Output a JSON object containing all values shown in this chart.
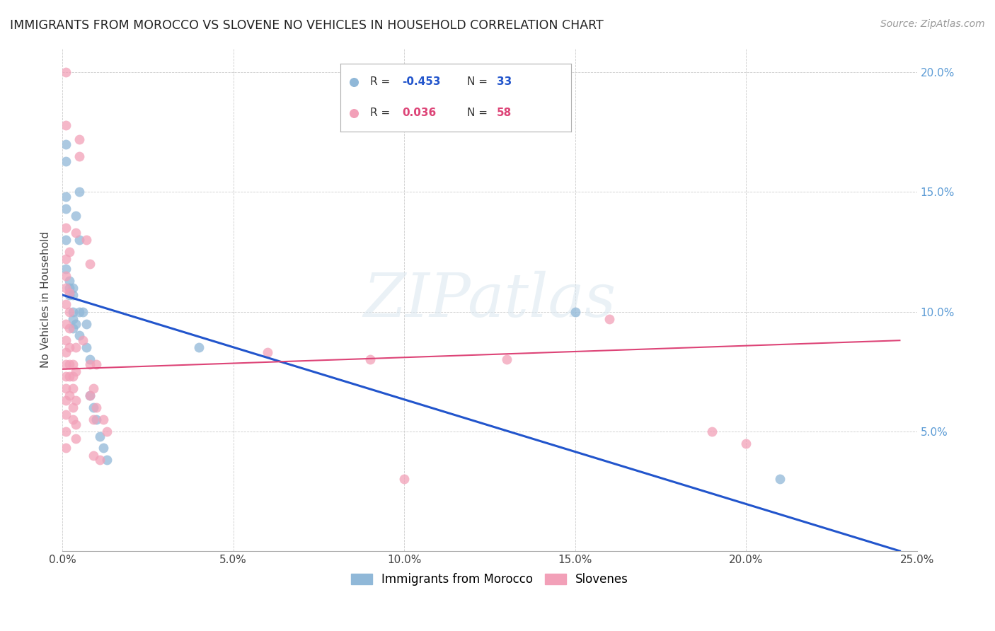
{
  "title": "IMMIGRANTS FROM MOROCCO VS SLOVENE NO VEHICLES IN HOUSEHOLD CORRELATION CHART",
  "source": "Source: ZipAtlas.com",
  "ylabel": "No Vehicles in Household",
  "xlim": [
    0.0,
    0.25
  ],
  "ylim": [
    0.0,
    0.21
  ],
  "xticks": [
    0.0,
    0.05,
    0.1,
    0.15,
    0.2,
    0.25
  ],
  "xtick_labels": [
    "0.0%",
    "5.0%",
    "10.0%",
    "15.0%",
    "20.0%",
    "25.0%"
  ],
  "yticks": [
    0.0,
    0.05,
    0.1,
    0.15,
    0.2
  ],
  "ytick_labels": [
    "",
    "5.0%",
    "10.0%",
    "15.0%",
    "20.0%"
  ],
  "blue_scatter": [
    [
      0.001,
      0.17
    ],
    [
      0.001,
      0.163
    ],
    [
      0.001,
      0.148
    ],
    [
      0.001,
      0.143
    ],
    [
      0.001,
      0.13
    ],
    [
      0.001,
      0.118
    ],
    [
      0.002,
      0.113
    ],
    [
      0.002,
      0.11
    ],
    [
      0.002,
      0.107
    ],
    [
      0.003,
      0.11
    ],
    [
      0.003,
      0.107
    ],
    [
      0.003,
      0.1
    ],
    [
      0.003,
      0.097
    ],
    [
      0.003,
      0.093
    ],
    [
      0.004,
      0.14
    ],
    [
      0.004,
      0.095
    ],
    [
      0.005,
      0.15
    ],
    [
      0.005,
      0.13
    ],
    [
      0.005,
      0.1
    ],
    [
      0.005,
      0.09
    ],
    [
      0.006,
      0.1
    ],
    [
      0.007,
      0.095
    ],
    [
      0.007,
      0.085
    ],
    [
      0.008,
      0.08
    ],
    [
      0.008,
      0.065
    ],
    [
      0.009,
      0.06
    ],
    [
      0.01,
      0.055
    ],
    [
      0.011,
      0.048
    ],
    [
      0.012,
      0.043
    ],
    [
      0.013,
      0.038
    ],
    [
      0.15,
      0.1
    ],
    [
      0.21,
      0.03
    ],
    [
      0.04,
      0.085
    ]
  ],
  "pink_scatter": [
    [
      0.001,
      0.2
    ],
    [
      0.001,
      0.178
    ],
    [
      0.001,
      0.135
    ],
    [
      0.001,
      0.122
    ],
    [
      0.001,
      0.115
    ],
    [
      0.001,
      0.11
    ],
    [
      0.001,
      0.103
    ],
    [
      0.001,
      0.095
    ],
    [
      0.001,
      0.088
    ],
    [
      0.001,
      0.083
    ],
    [
      0.001,
      0.078
    ],
    [
      0.001,
      0.073
    ],
    [
      0.001,
      0.068
    ],
    [
      0.001,
      0.063
    ],
    [
      0.001,
      0.057
    ],
    [
      0.001,
      0.05
    ],
    [
      0.001,
      0.043
    ],
    [
      0.002,
      0.125
    ],
    [
      0.002,
      0.108
    ],
    [
      0.002,
      0.1
    ],
    [
      0.002,
      0.093
    ],
    [
      0.002,
      0.085
    ],
    [
      0.002,
      0.078
    ],
    [
      0.002,
      0.073
    ],
    [
      0.002,
      0.065
    ],
    [
      0.003,
      0.078
    ],
    [
      0.003,
      0.073
    ],
    [
      0.003,
      0.068
    ],
    [
      0.003,
      0.06
    ],
    [
      0.003,
      0.055
    ],
    [
      0.004,
      0.133
    ],
    [
      0.004,
      0.085
    ],
    [
      0.004,
      0.075
    ],
    [
      0.004,
      0.063
    ],
    [
      0.004,
      0.053
    ],
    [
      0.004,
      0.047
    ],
    [
      0.005,
      0.172
    ],
    [
      0.005,
      0.165
    ],
    [
      0.006,
      0.088
    ],
    [
      0.007,
      0.13
    ],
    [
      0.008,
      0.12
    ],
    [
      0.008,
      0.078
    ],
    [
      0.008,
      0.065
    ],
    [
      0.009,
      0.068
    ],
    [
      0.009,
      0.055
    ],
    [
      0.009,
      0.04
    ],
    [
      0.01,
      0.078
    ],
    [
      0.01,
      0.06
    ],
    [
      0.011,
      0.038
    ],
    [
      0.012,
      0.055
    ],
    [
      0.013,
      0.05
    ],
    [
      0.06,
      0.083
    ],
    [
      0.09,
      0.08
    ],
    [
      0.1,
      0.03
    ],
    [
      0.13,
      0.08
    ],
    [
      0.16,
      0.097
    ],
    [
      0.19,
      0.05
    ],
    [
      0.2,
      0.045
    ]
  ],
  "blue_line_x": [
    0.0,
    0.245
  ],
  "blue_line_y": [
    0.107,
    0.0
  ],
  "pink_line_x": [
    0.0,
    0.245
  ],
  "pink_line_y": [
    0.076,
    0.088
  ],
  "blue_color": "#90b8d8",
  "pink_color": "#f2a0b8",
  "blue_line_color": "#2255cc",
  "pink_line_color": "#dd4477",
  "background_color": "#ffffff",
  "grid_color": "#cccccc",
  "legend_R_blue": "-0.453",
  "legend_N_blue": "33",
  "legend_R_pink": "0.036",
  "legend_N_pink": "58",
  "legend_label_blue": "Immigrants from Morocco",
  "legend_label_pink": "Slovenes",
  "watermark": "ZIPatlas"
}
